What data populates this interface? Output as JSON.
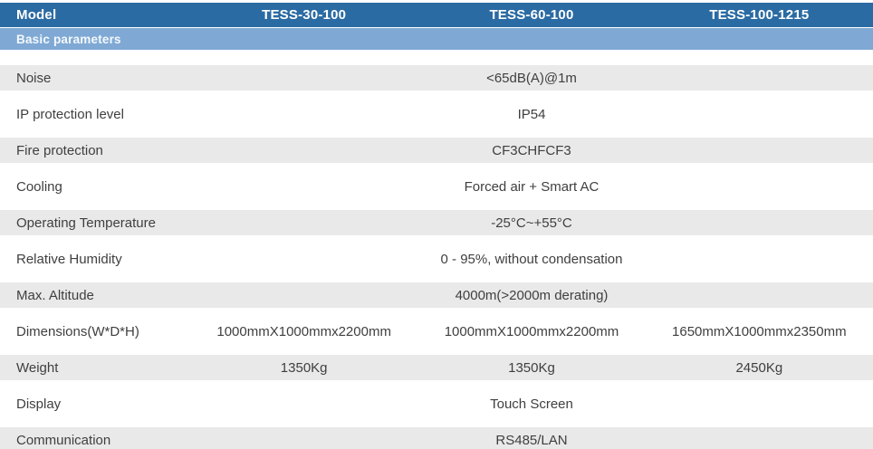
{
  "table": {
    "header": {
      "model_label": "Model",
      "columns": [
        "TESS-30-100",
        "TESS-60-100",
        "TESS-100-1215"
      ]
    },
    "section": {
      "label": "Basic parameters"
    },
    "rows": [
      {
        "label": "Noise",
        "merged": "<65dB(A)@1m"
      },
      {
        "label": "IP protection level",
        "merged": "IP54"
      },
      {
        "label": "Fire protection",
        "merged": "CF3CHFCF3"
      },
      {
        "label": "Cooling",
        "merged": "Forced air + Smart AC"
      },
      {
        "label": "Operating Temperature",
        "merged": "-25°C~+55°C"
      },
      {
        "label": "Relative Humidity",
        "merged": "0 - 95%, without condensation"
      },
      {
        "label": "Max. Altitude",
        "merged": "4000m(>2000m derating)"
      },
      {
        "label": "Dimensions(W*D*H)",
        "values": [
          "1000mmX1000mmx2200mm",
          "1000mmX1000mmx2200mm",
          "1650mmX1000mmx2350mm"
        ]
      },
      {
        "label": "Weight",
        "values": [
          "1350Kg",
          "1350Kg",
          "2450Kg"
        ]
      },
      {
        "label": "Display",
        "merged": "Touch Screen"
      },
      {
        "label": "Communication",
        "merged": "RS485/LAN"
      }
    ],
    "colors": {
      "header_bg": "#2b6ba3",
      "section_bg": "#7fa9d4",
      "stripe_bg": "#e9e9e9",
      "text": "#3f3f3f",
      "header_text": "#ffffff"
    }
  }
}
